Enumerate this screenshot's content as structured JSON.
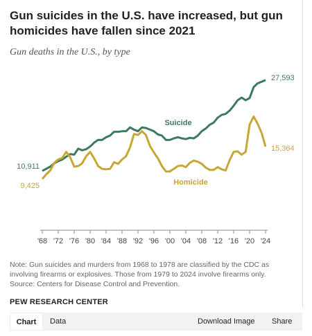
{
  "chart_data": {
    "type": "line",
    "title": "Gun suicides in the U.S. have increased, but gun homicides have fallen since 2021",
    "subtitle": "Gun deaths in the U.S., by type",
    "x": [
      1968,
      1969,
      1970,
      1971,
      1972,
      1973,
      1974,
      1975,
      1976,
      1977,
      1978,
      1979,
      1980,
      1981,
      1982,
      1983,
      1984,
      1985,
      1986,
      1987,
      1988,
      1989,
      1990,
      1991,
      1992,
      1993,
      1994,
      1995,
      1996,
      1997,
      1998,
      1999,
      2000,
      2001,
      2002,
      2003,
      2004,
      2005,
      2006,
      2007,
      2008,
      2009,
      2010,
      2011,
      2012,
      2013,
      2014,
      2015,
      2016,
      2017,
      2018,
      2019,
      2020,
      2021,
      2022,
      2023,
      2024
    ],
    "series": [
      {
        "name": "Suicide",
        "color": "#3b7a5c",
        "values": [
          10911,
          11300,
          11700,
          12300,
          12700,
          13000,
          13500,
          14000,
          13900,
          15000,
          14700,
          14900,
          15400,
          16100,
          16600,
          16600,
          17100,
          17400,
          18100,
          18100,
          18200,
          18200,
          18900,
          18500,
          18200,
          18900,
          18800,
          18500,
          18200,
          17600,
          17400,
          16600,
          16600,
          16900,
          17100,
          16900,
          16750,
          17000,
          16900,
          17400,
          18200,
          18700,
          19400,
          19800,
          20700,
          21200,
          21400,
          22000,
          22900,
          23900,
          24400,
          23900,
          24300,
          26300,
          27000,
          27300,
          27593
        ],
        "value_labels": [
          "10,911",
          null,
          null,
          null,
          null,
          null,
          null,
          null,
          null,
          null,
          null,
          null,
          null,
          null,
          null,
          null,
          null,
          null,
          null,
          null,
          null,
          null,
          null,
          null,
          null,
          null,
          null,
          null,
          null,
          null,
          null,
          null,
          null,
          null,
          null,
          null,
          null,
          null,
          null,
          null,
          null,
          null,
          null,
          null,
          null,
          null,
          null,
          null,
          null,
          null,
          null,
          null,
          null,
          null,
          null,
          null,
          "27,593"
        ]
      },
      {
        "name": "Homicide",
        "color": "#c9a535",
        "values": [
          9425,
          10300,
          11000,
          12400,
          13000,
          13300,
          14400,
          13400,
          11700,
          11800,
          12300,
          13600,
          14400,
          13200,
          11800,
          11300,
          11200,
          11300,
          12500,
          12200,
          13000,
          13600,
          15200,
          17700,
          17500,
          18200,
          17500,
          15500,
          14300,
          13200,
          11800,
          10800,
          10800,
          11300,
          11800,
          11900,
          11600,
          12400,
          12800,
          12600,
          12200,
          11500,
          11100,
          11100,
          11600,
          11200,
          11000,
          12900,
          14400,
          14500,
          13900,
          14400,
          19400,
          20900,
          19600,
          17900,
          15364
        ],
        "value_labels": [
          "9,425",
          null,
          null,
          null,
          null,
          null,
          null,
          null,
          null,
          null,
          null,
          null,
          null,
          null,
          null,
          null,
          null,
          null,
          null,
          null,
          null,
          null,
          null,
          null,
          null,
          null,
          null,
          null,
          null,
          null,
          null,
          null,
          null,
          null,
          null,
          null,
          null,
          null,
          null,
          null,
          null,
          null,
          null,
          null,
          null,
          null,
          null,
          null,
          null,
          null,
          null,
          null,
          null,
          null,
          null,
          null,
          "15,364"
        ]
      }
    ],
    "xlim": [
      1968,
      2024
    ],
    "xticks": [
      {
        "value": 1968,
        "label": "'68"
      },
      {
        "value": 1972,
        "label": "'72"
      },
      {
        "value": 1976,
        "label": "'76"
      },
      {
        "value": 1980,
        "label": "'80"
      },
      {
        "value": 1984,
        "label": "'84"
      },
      {
        "value": 1988,
        "label": "'88"
      },
      {
        "value": 1992,
        "label": "'92"
      },
      {
        "value": 1996,
        "label": "'96"
      },
      {
        "value": 2000,
        "label": "'00"
      },
      {
        "value": 2004,
        "label": "'04"
      },
      {
        "value": 2008,
        "label": "'08"
      },
      {
        "value": 2012,
        "label": "'12"
      },
      {
        "value": 2016,
        "label": "'16"
      },
      {
        "value": 2020,
        "label": "'20"
      },
      {
        "value": 2024,
        "label": "'24"
      }
    ],
    "ylim": [
      0,
      30000
    ],
    "grid": false,
    "note": "Note: Gun suicides and murders from 1968 to 1978 are classified by the CDC as involving firearms or explosives. Those from 1979 to 2024 involve firearms only.",
    "source": "Source: Centers for Disease Control and Prevention."
  },
  "credit": "PEW RESEARCH CENTER",
  "tabs": [
    "Chart",
    "Data",
    "Download Image",
    "Share"
  ]
}
